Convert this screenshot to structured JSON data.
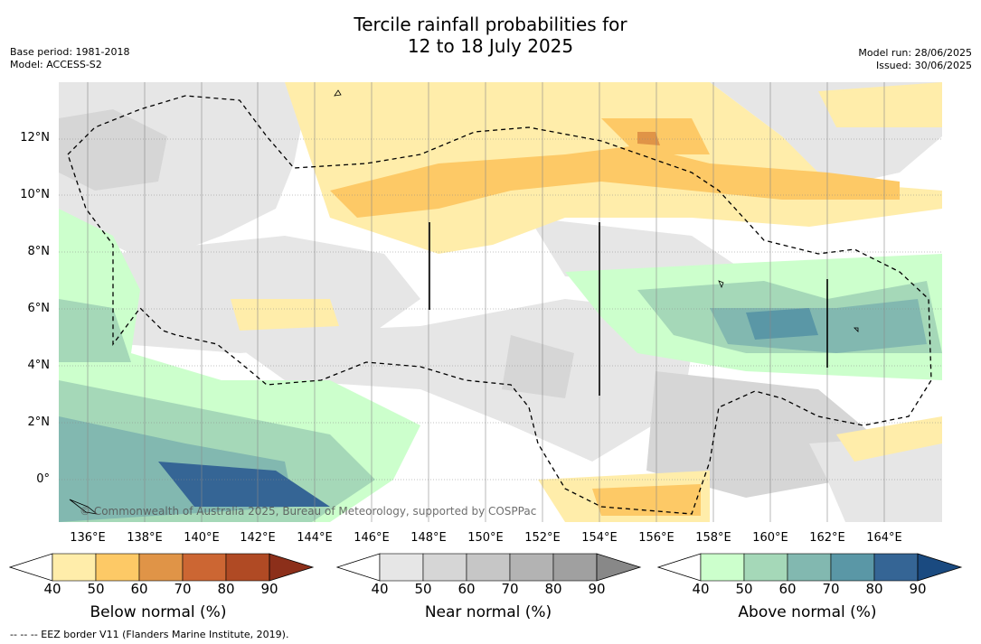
{
  "title": {
    "line1": "Tercile rainfall probabilities for",
    "line2": "12 to 18 July 2025"
  },
  "meta_left": {
    "base_period": "Base period: 1981-2018",
    "model": "Model: ACCESS-S2"
  },
  "meta_right": {
    "model_run": "Model run: 28/06/2025",
    "issued": "Issued: 30/06/2025"
  },
  "map": {
    "lat_labels": [
      "12°N",
      "10°N",
      "8°N",
      "6°N",
      "4°N",
      "2°N",
      "0°"
    ],
    "lon_labels": [
      "136°E",
      "138°E",
      "140°E",
      "142°E",
      "144°E",
      "146°E",
      "148°E",
      "150°E",
      "152°E",
      "154°E",
      "156°E",
      "158°E",
      "160°E",
      "162°E",
      "164°E"
    ],
    "copyright": "© Commonwealth of Australia 2025, Bureau of Meteorology, supported by COSPPac"
  },
  "colorbars": [
    {
      "title": "Below normal (%)",
      "levels": [
        "40",
        "50",
        "60",
        "70",
        "80",
        "90"
      ],
      "colors": [
        "#ffedaa",
        "#fdc966",
        "#e09447",
        "#cc6633",
        "#b04a24",
        "#8c2f1a"
      ]
    },
    {
      "title": "Near normal (%)",
      "levels": [
        "40",
        "50",
        "60",
        "70",
        "80",
        "90"
      ],
      "colors": [
        "#e6e6e6",
        "#d6d6d6",
        "#c6c6c6",
        "#b3b3b3",
        "#a0a0a0",
        "#888888"
      ]
    },
    {
      "title": "Above normal (%)",
      "levels": [
        "40",
        "50",
        "60",
        "70",
        "80",
        "90"
      ],
      "colors": [
        "#ccffcc",
        "#a5d8b8",
        "#82b8b0",
        "#5a97a6",
        "#356595",
        "#1a4a80"
      ]
    }
  ],
  "footer": "--  --  -- EEZ border V11 (Flanders Marine Institute, 2019)."
}
